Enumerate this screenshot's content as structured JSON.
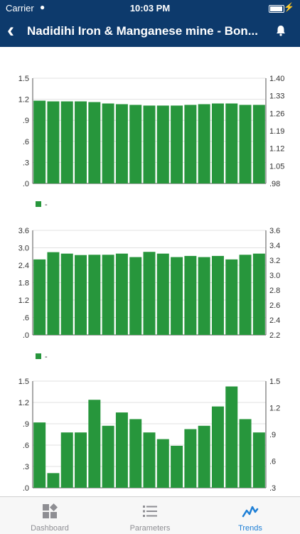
{
  "status_bar": {
    "carrier": "Carrier",
    "time": "10:03 PM"
  },
  "nav": {
    "title": "Nadidihi Iron & Manganese mine - Bon..."
  },
  "charts": [
    {
      "type": "bar",
      "values": [
        1.18,
        1.17,
        1.17,
        1.17,
        1.16,
        1.14,
        1.13,
        1.12,
        1.11,
        1.11,
        1.11,
        1.12,
        1.13,
        1.14,
        1.14,
        1.12,
        1.12
      ],
      "ylim": [
        0,
        1.5
      ],
      "left_ticks": [
        ".0",
        ".3",
        ".6",
        ".9",
        "1.2",
        "1.5"
      ],
      "right_ticks": [
        ".98",
        "1.05",
        "1.12",
        "1.19",
        "1.26",
        "1.33",
        "1.40"
      ],
      "legend": "-",
      "color": "#27963c"
    },
    {
      "type": "bar",
      "values": [
        2.6,
        2.85,
        2.8,
        2.75,
        2.76,
        2.76,
        2.8,
        2.68,
        2.86,
        2.8,
        2.68,
        2.72,
        2.68,
        2.72,
        2.6,
        2.76,
        2.8
      ],
      "ylim": [
        0,
        3.6
      ],
      "left_ticks": [
        ".0",
        ".6",
        "1.2",
        "1.8",
        "2.4",
        "3.0",
        "3.6"
      ],
      "right_ticks": [
        "2.2",
        "2.4",
        "2.6",
        "2.8",
        "3.0",
        "3.2",
        "3.4",
        "3.6"
      ],
      "legend": "-",
      "color": "#27963c"
    },
    {
      "type": "bar",
      "values": [
        0.98,
        0.22,
        0.83,
        0.83,
        1.32,
        0.93,
        1.13,
        1.03,
        0.83,
        0.73,
        0.63,
        0.88,
        0.93,
        1.22,
        1.52,
        1.03,
        0.83
      ],
      "ylim": [
        0,
        1.6
      ],
      "left_ticks": [
        ".0",
        ".3",
        ".6",
        ".9",
        "1.2",
        "1.5"
      ],
      "right_ticks": [
        ".3",
        ".6",
        ".9",
        "1.2",
        "1.5"
      ],
      "legend": "",
      "color": "#27963c"
    }
  ],
  "tabs": [
    {
      "label": "Dashboard",
      "icon": "dashboard-icon",
      "active": false
    },
    {
      "label": "Parameters",
      "icon": "list-icon",
      "active": false
    },
    {
      "label": "Trends",
      "icon": "trends-icon",
      "active": true
    }
  ],
  "colors": {
    "nav": "#0d3a6c",
    "bar": "#27963c",
    "active_tab": "#1e7fd6",
    "inactive_tab": "#8e8e93"
  }
}
